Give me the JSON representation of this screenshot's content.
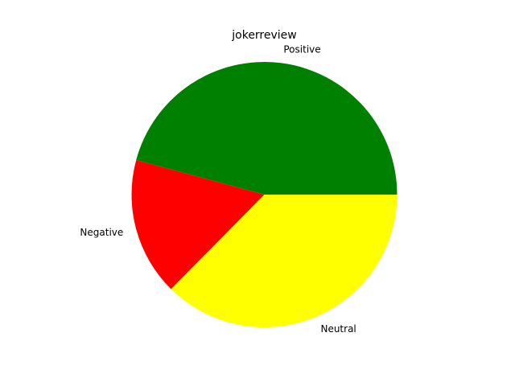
{
  "chart_data": {
    "type": "pie",
    "title": "jokerreview",
    "categories": [
      "Positive",
      "Negative",
      "Neutral"
    ],
    "values": [
      45.8,
      16.8,
      37.4
    ],
    "colors": [
      "#008000",
      "#ff0000",
      "#ffff00"
    ],
    "start_angle_deg": 0,
    "direction": "counterclockwise",
    "legend": "none"
  }
}
